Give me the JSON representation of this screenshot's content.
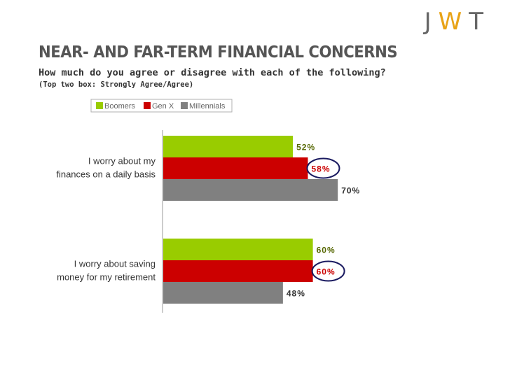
{
  "logo": {
    "letters": [
      "J",
      "W",
      "T"
    ],
    "colors": [
      "#666666",
      "#e8a317",
      "#666666"
    ]
  },
  "header": {
    "title": "NEAR- AND FAR-TERM FINANCIAL CONCERNS",
    "subtitle": "How much do you agree or disagree with each of the following?",
    "note": "(Top two box: Strongly Agree/Agree)"
  },
  "colors": {
    "Boomers": "#99cc00",
    "Gen X": "#cc0000",
    "Millennials": "#808080",
    "label_green": "#556600",
    "label_red": "#cc0000",
    "label_gray": "#333333",
    "highlight_ring": "#1a1a60"
  },
  "chart_data": {
    "type": "bar",
    "orientation": "horizontal",
    "categories": [
      [
        "I worry about my",
        "finances on a daily basis"
      ],
      [
        "I worry about saving",
        "money for my retirement"
      ]
    ],
    "series": [
      {
        "name": "Boomers",
        "values": [
          52,
          60
        ]
      },
      {
        "name": "Gen X",
        "values": [
          58,
          60
        ]
      },
      {
        "name": "Millennials",
        "values": [
          70,
          48
        ]
      }
    ],
    "data_labels": [
      [
        "52%",
        "60%"
      ],
      [
        "58%",
        "60%"
      ],
      [
        "70%",
        "48%"
      ]
    ],
    "highlighted_series": "Gen X",
    "xlim": [
      0,
      100
    ],
    "legend_position": "top-left",
    "grid": false
  }
}
